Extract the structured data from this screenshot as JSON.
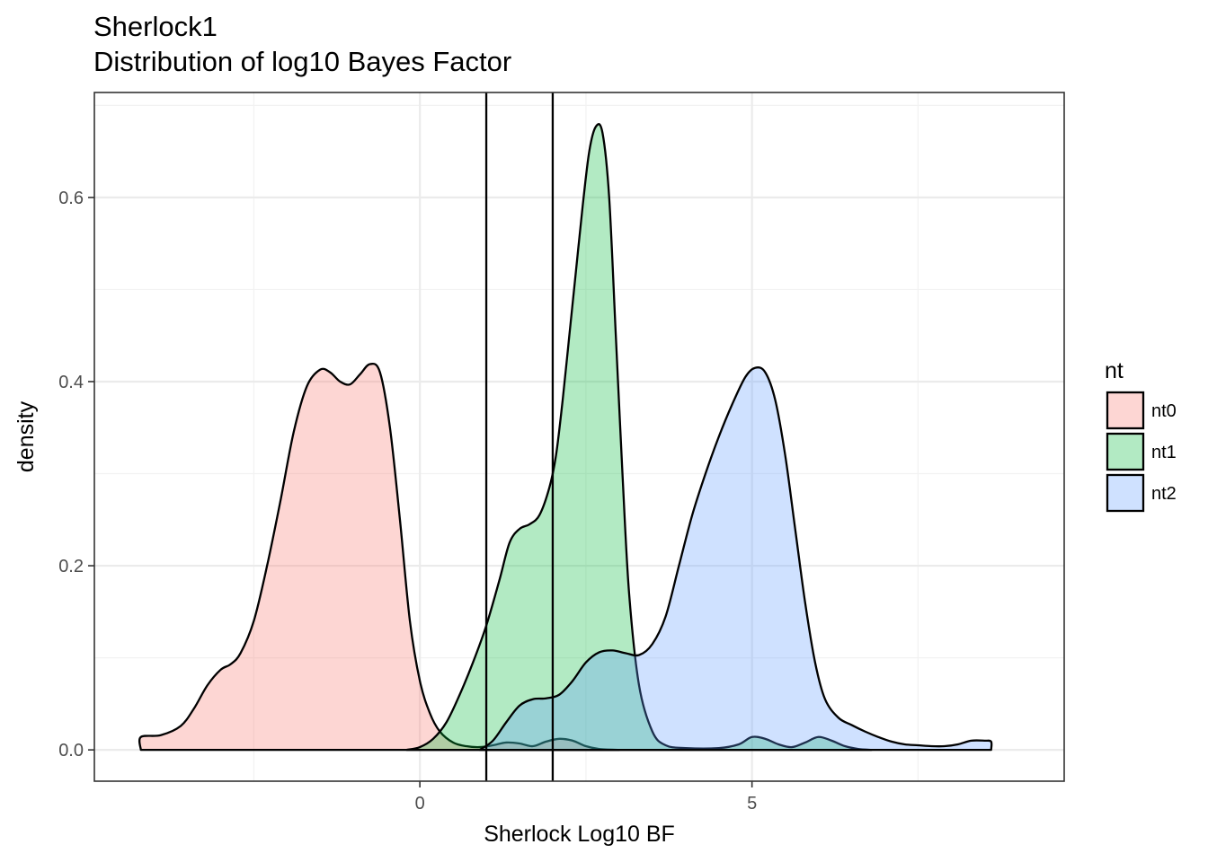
{
  "chart_data": {
    "type": "area",
    "title": "Sherlock1",
    "subtitle": "Distribution of log10 Bayes Factor",
    "xlabel": "Sherlock Log10 BF",
    "ylabel": "density",
    "xlim": [
      -4.9,
      9.7
    ],
    "ylim": [
      -0.034,
      0.714
    ],
    "x_ticks": [
      0,
      5
    ],
    "x_tick_labels": [
      "0",
      "5"
    ],
    "y_ticks": [
      0.0,
      0.2,
      0.4,
      0.6
    ],
    "y_tick_labels": [
      "0.0",
      "0.2",
      "0.4",
      "0.6"
    ],
    "grid": true,
    "vlines": [
      1,
      2
    ],
    "legend": {
      "title": "nt",
      "position": "right"
    },
    "series": [
      {
        "name": "nt0",
        "color": "#F8766D",
        "points": [
          [
            -4.2,
            0
          ],
          [
            -4.2,
            0.014
          ],
          [
            -3.9,
            0.016
          ],
          [
            -3.6,
            0.026
          ],
          [
            -3.4,
            0.045
          ],
          [
            -3.2,
            0.07
          ],
          [
            -3.0,
            0.087
          ],
          [
            -2.85,
            0.093
          ],
          [
            -2.7,
            0.105
          ],
          [
            -2.5,
            0.14
          ],
          [
            -2.3,
            0.2
          ],
          [
            -2.1,
            0.27
          ],
          [
            -1.9,
            0.345
          ],
          [
            -1.7,
            0.395
          ],
          [
            -1.5,
            0.413
          ],
          [
            -1.35,
            0.41
          ],
          [
            -1.2,
            0.4
          ],
          [
            -1.05,
            0.397
          ],
          [
            -0.9,
            0.408
          ],
          [
            -0.75,
            0.419
          ],
          [
            -0.6,
            0.41
          ],
          [
            -0.45,
            0.35
          ],
          [
            -0.3,
            0.25
          ],
          [
            -0.15,
            0.14
          ],
          [
            0.0,
            0.075
          ],
          [
            0.15,
            0.04
          ],
          [
            0.3,
            0.02
          ],
          [
            0.5,
            0.008
          ],
          [
            0.7,
            0.004
          ],
          [
            0.9,
            0.003
          ],
          [
            1.1,
            0.005
          ],
          [
            1.3,
            0.008
          ],
          [
            1.5,
            0.007
          ],
          [
            1.7,
            0.004
          ],
          [
            1.9,
            0.009
          ],
          [
            2.1,
            0.012
          ],
          [
            2.3,
            0.01
          ],
          [
            2.5,
            0.004
          ],
          [
            2.7,
            0.001
          ],
          [
            3.0,
            0
          ]
        ]
      },
      {
        "name": "nt1",
        "color": "#00BA38",
        "points": [
          [
            -0.2,
            0
          ],
          [
            0.0,
            0.003
          ],
          [
            0.2,
            0.012
          ],
          [
            0.4,
            0.03
          ],
          [
            0.6,
            0.06
          ],
          [
            0.8,
            0.095
          ],
          [
            1.0,
            0.135
          ],
          [
            1.2,
            0.185
          ],
          [
            1.35,
            0.225
          ],
          [
            1.5,
            0.24
          ],
          [
            1.65,
            0.245
          ],
          [
            1.8,
            0.255
          ],
          [
            1.95,
            0.285
          ],
          [
            2.05,
            0.32
          ],
          [
            2.15,
            0.38
          ],
          [
            2.25,
            0.45
          ],
          [
            2.35,
            0.52
          ],
          [
            2.45,
            0.59
          ],
          [
            2.55,
            0.65
          ],
          [
            2.65,
            0.677
          ],
          [
            2.75,
            0.67
          ],
          [
            2.85,
            0.6
          ],
          [
            2.95,
            0.45
          ],
          [
            3.05,
            0.3
          ],
          [
            3.15,
            0.17
          ],
          [
            3.3,
            0.07
          ],
          [
            3.5,
            0.02
          ],
          [
            3.7,
            0.005
          ],
          [
            4.0,
            0.002
          ],
          [
            4.5,
            0.002
          ],
          [
            4.8,
            0.006
          ],
          [
            5.0,
            0.014
          ],
          [
            5.2,
            0.012
          ],
          [
            5.4,
            0.006
          ],
          [
            5.6,
            0.003
          ],
          [
            5.8,
            0.008
          ],
          [
            6.0,
            0.014
          ],
          [
            6.2,
            0.01
          ],
          [
            6.4,
            0.004
          ],
          [
            6.6,
            0.001
          ],
          [
            6.8,
            0
          ]
        ]
      },
      {
        "name": "nt2",
        "color": "#619CFF",
        "points": [
          [
            0.9,
            0
          ],
          [
            1.1,
            0.01
          ],
          [
            1.3,
            0.03
          ],
          [
            1.5,
            0.048
          ],
          [
            1.7,
            0.055
          ],
          [
            1.9,
            0.056
          ],
          [
            2.1,
            0.06
          ],
          [
            2.3,
            0.075
          ],
          [
            2.5,
            0.095
          ],
          [
            2.7,
            0.106
          ],
          [
            2.9,
            0.108
          ],
          [
            3.1,
            0.105
          ],
          [
            3.3,
            0.103
          ],
          [
            3.5,
            0.115
          ],
          [
            3.7,
            0.145
          ],
          [
            3.9,
            0.2
          ],
          [
            4.1,
            0.255
          ],
          [
            4.3,
            0.3
          ],
          [
            4.5,
            0.34
          ],
          [
            4.7,
            0.375
          ],
          [
            4.9,
            0.405
          ],
          [
            5.05,
            0.415
          ],
          [
            5.2,
            0.41
          ],
          [
            5.35,
            0.38
          ],
          [
            5.5,
            0.32
          ],
          [
            5.65,
            0.24
          ],
          [
            5.8,
            0.16
          ],
          [
            5.95,
            0.095
          ],
          [
            6.1,
            0.055
          ],
          [
            6.3,
            0.035
          ],
          [
            6.5,
            0.027
          ],
          [
            6.7,
            0.02
          ],
          [
            6.9,
            0.014
          ],
          [
            7.1,
            0.009
          ],
          [
            7.3,
            0.006
          ],
          [
            7.5,
            0.005
          ],
          [
            7.7,
            0.004
          ],
          [
            7.9,
            0.004
          ],
          [
            8.1,
            0.006
          ],
          [
            8.3,
            0.01
          ],
          [
            8.5,
            0.01
          ],
          [
            8.6,
            0.009
          ],
          [
            8.6,
            0
          ]
        ]
      }
    ]
  }
}
